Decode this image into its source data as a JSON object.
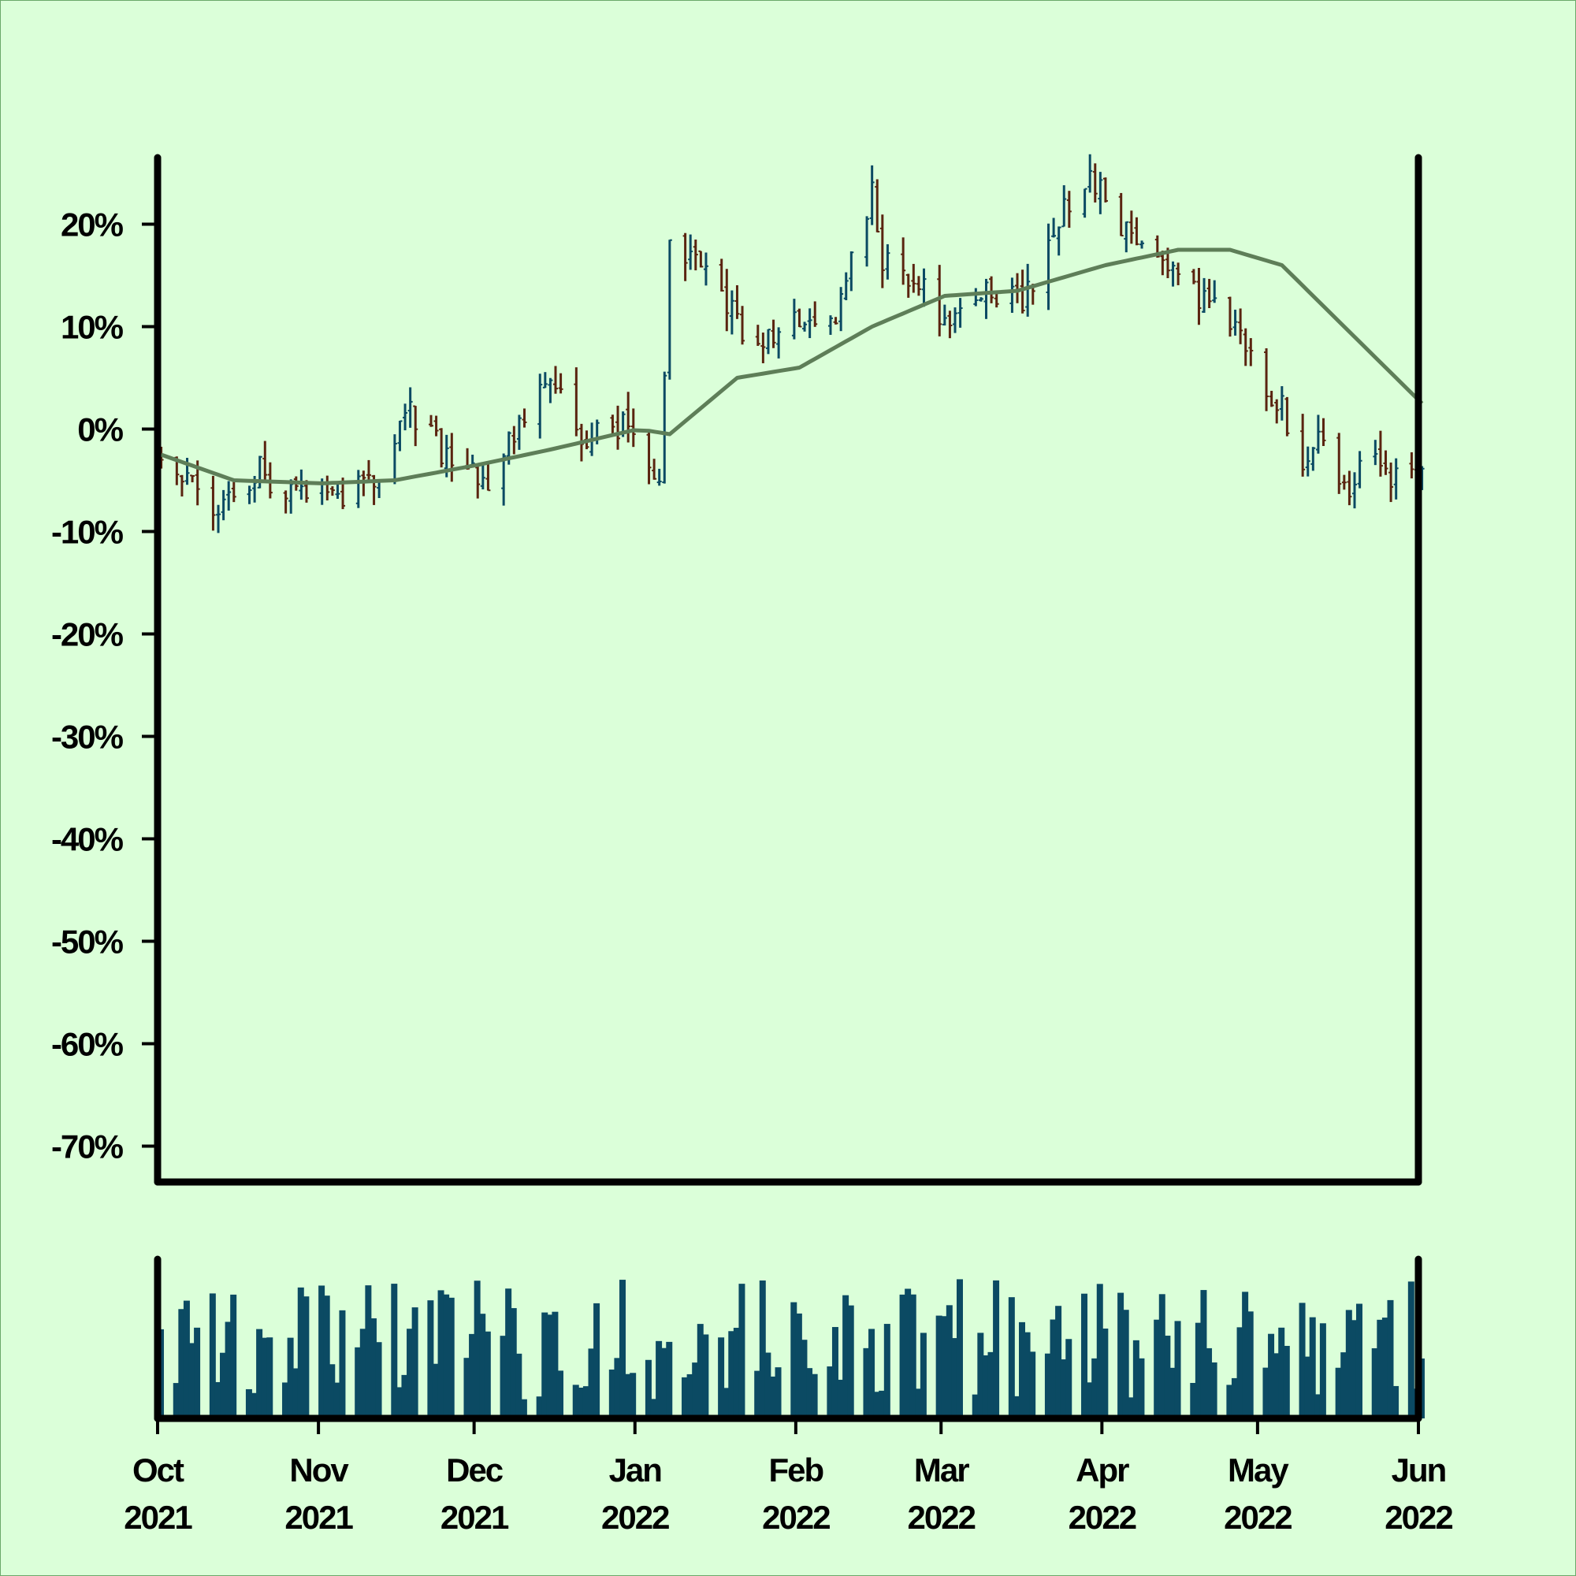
{
  "chart_data": {
    "type": "ohlc",
    "price_panel": {
      "y_axis": {
        "ticks": [
          "20%",
          "10%",
          "0%",
          "-10%",
          "-20%",
          "-30%",
          "-40%",
          "-50%",
          "-60%",
          "-70%"
        ],
        "ylim": [
          -73.5,
          26.5
        ]
      },
      "x_range": [
        "2021-10-01",
        "2022-06-01"
      ],
      "series": [
        {
          "type": "ohlc",
          "up_color": "#0b4a63",
          "down_color": "#5a2410",
          "description_points_pct": [
            [
              "2021-10-01",
              -2
            ],
            [
              "2021-10-12",
              -8
            ],
            [
              "2021-10-20",
              -4
            ],
            [
              "2021-10-28",
              -7
            ],
            [
              "2021-11-05",
              -6
            ],
            [
              "2021-11-12",
              -4
            ],
            [
              "2021-11-18",
              2
            ],
            [
              "2021-11-25",
              -3
            ],
            [
              "2021-12-03",
              -5
            ],
            [
              "2021-12-08",
              -1
            ],
            [
              "2021-12-15",
              6
            ],
            [
              "2021-12-22",
              -1
            ],
            [
              "2021-12-30",
              1
            ],
            [
              "2022-01-05",
              -5
            ],
            [
              "2022-01-07",
              17
            ],
            [
              "2022-01-12",
              18
            ],
            [
              "2022-01-18",
              12
            ],
            [
              "2022-01-22",
              9
            ],
            [
              "2022-01-28",
              8
            ],
            [
              "2022-02-03",
              12
            ],
            [
              "2022-02-08",
              10
            ],
            [
              "2022-02-15",
              24
            ],
            [
              "2022-02-17",
              17
            ],
            [
              "2022-02-24",
              14
            ],
            [
              "2022-03-03",
              10
            ],
            [
              "2022-03-09",
              14
            ],
            [
              "2022-03-16",
              12
            ],
            [
              "2022-03-22",
              20
            ],
            [
              "2022-03-29",
              25
            ],
            [
              "2022-04-05",
              19
            ],
            [
              "2022-04-12",
              16
            ],
            [
              "2022-04-19",
              13
            ],
            [
              "2022-04-25",
              10
            ],
            [
              "2022-04-30",
              6
            ],
            [
              "2022-05-05",
              2
            ],
            [
              "2022-05-09",
              -3
            ],
            [
              "2022-05-13",
              -1
            ],
            [
              "2022-05-18",
              -6
            ],
            [
              "2022-05-22",
              -2
            ],
            [
              "2022-05-27",
              -5
            ],
            [
              "2022-06-01",
              -4
            ]
          ]
        },
        {
          "type": "line",
          "color": "#5e7e58",
          "points_pct": [
            [
              "2021-10-01",
              -2.5
            ],
            [
              "2021-10-15",
              -5
            ],
            [
              "2021-11-01",
              -5.3
            ],
            [
              "2021-11-15",
              -5
            ],
            [
              "2021-12-01",
              -3.5
            ],
            [
              "2021-12-15",
              -2
            ],
            [
              "2022-01-01",
              0
            ],
            [
              "2022-01-07",
              -0.5
            ],
            [
              "2022-01-20",
              5
            ],
            [
              "2022-02-01",
              6
            ],
            [
              "2022-02-15",
              10
            ],
            [
              "2022-03-01",
              13
            ],
            [
              "2022-03-15",
              13.5
            ],
            [
              "2022-04-01",
              16
            ],
            [
              "2022-04-15",
              17.5
            ],
            [
              "2022-04-25",
              17.5
            ],
            [
              "2022-05-05",
              16
            ],
            [
              "2022-05-15",
              11
            ],
            [
              "2022-05-25",
              6
            ],
            [
              "2022-06-01",
              2.5
            ]
          ]
        }
      ]
    },
    "volume_panel": {
      "color": "#0b4a63"
    },
    "x_axis": {
      "ticks": [
        {
          "month": "Oct",
          "year": "2021"
        },
        {
          "month": "Nov",
          "year": "2021"
        },
        {
          "month": "Dec",
          "year": "2021"
        },
        {
          "month": "Jan",
          "year": "2022"
        },
        {
          "month": "Feb",
          "year": "2022"
        },
        {
          "month": "Mar",
          "year": "2022"
        },
        {
          "month": "Apr",
          "year": "2022"
        },
        {
          "month": "May",
          "year": "2022"
        },
        {
          "month": "Jun",
          "year": "2022"
        }
      ]
    },
    "background": "#dbffd9"
  }
}
